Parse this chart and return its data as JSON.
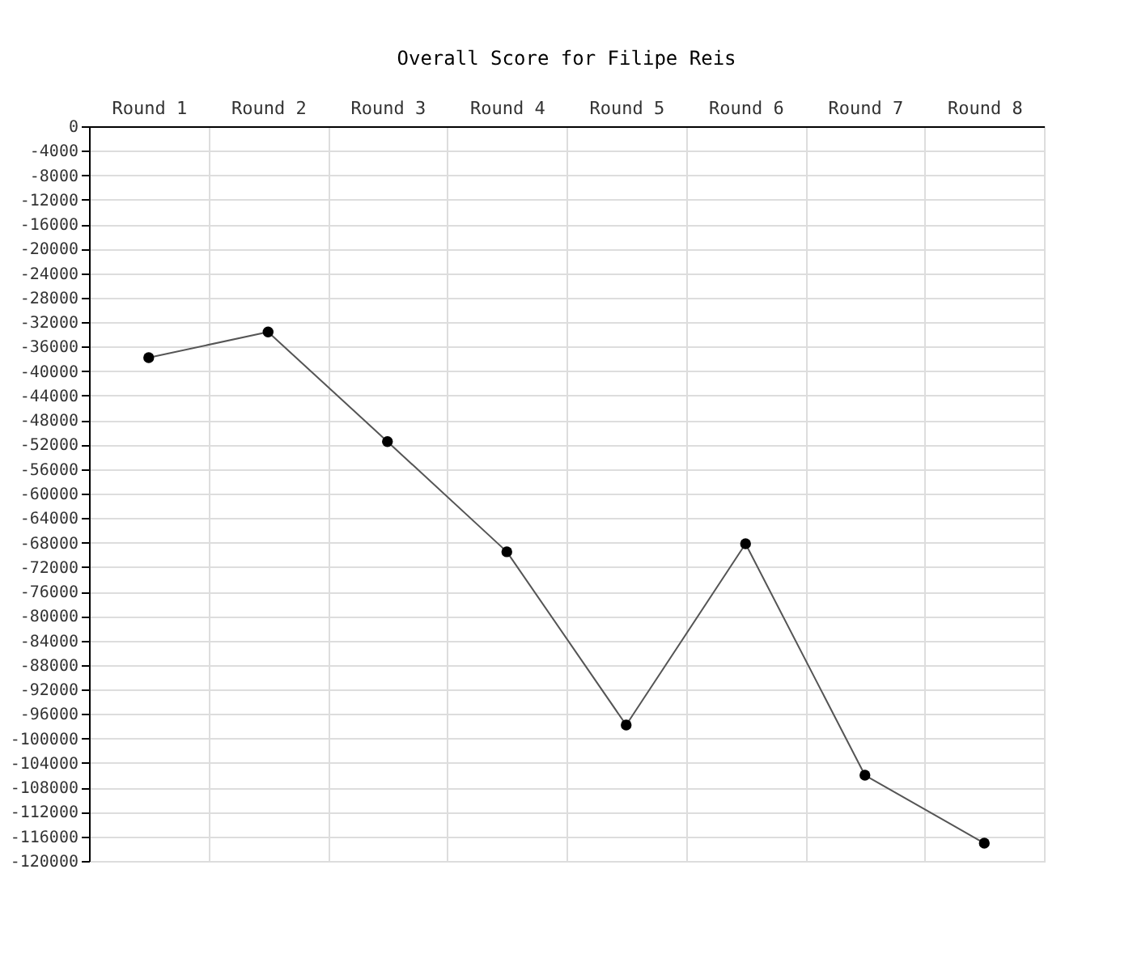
{
  "chart_data": {
    "type": "line",
    "title": "Overall Score for Filipe Reis",
    "categories": [
      "Round 1",
      "Round 2",
      "Round 3",
      "Round 4",
      "Round 5",
      "Round 6",
      "Round 7",
      "Round 8"
    ],
    "series": [
      {
        "color": "#000000",
        "values": [
          -37800,
          -33600,
          -51500,
          -69500,
          -97800,
          -68200,
          -106000,
          -117100
        ]
      }
    ],
    "ylim": [
      -120000,
      0
    ],
    "yticks": [
      0,
      -4000,
      -8000,
      -12000,
      -16000,
      -20000,
      -24000,
      -28000,
      -32000,
      -36000,
      -40000,
      -44000,
      -48000,
      -52000,
      -56000,
      -60000,
      -64000,
      -68000,
      -72000,
      -76000,
      -80000,
      -84000,
      -88000,
      -92000,
      -96000,
      -100000,
      -104000,
      -108000,
      -112000,
      -116000,
      -120000
    ],
    "grid": true,
    "marker": "circle",
    "line_style": "solid",
    "legend": false
  }
}
